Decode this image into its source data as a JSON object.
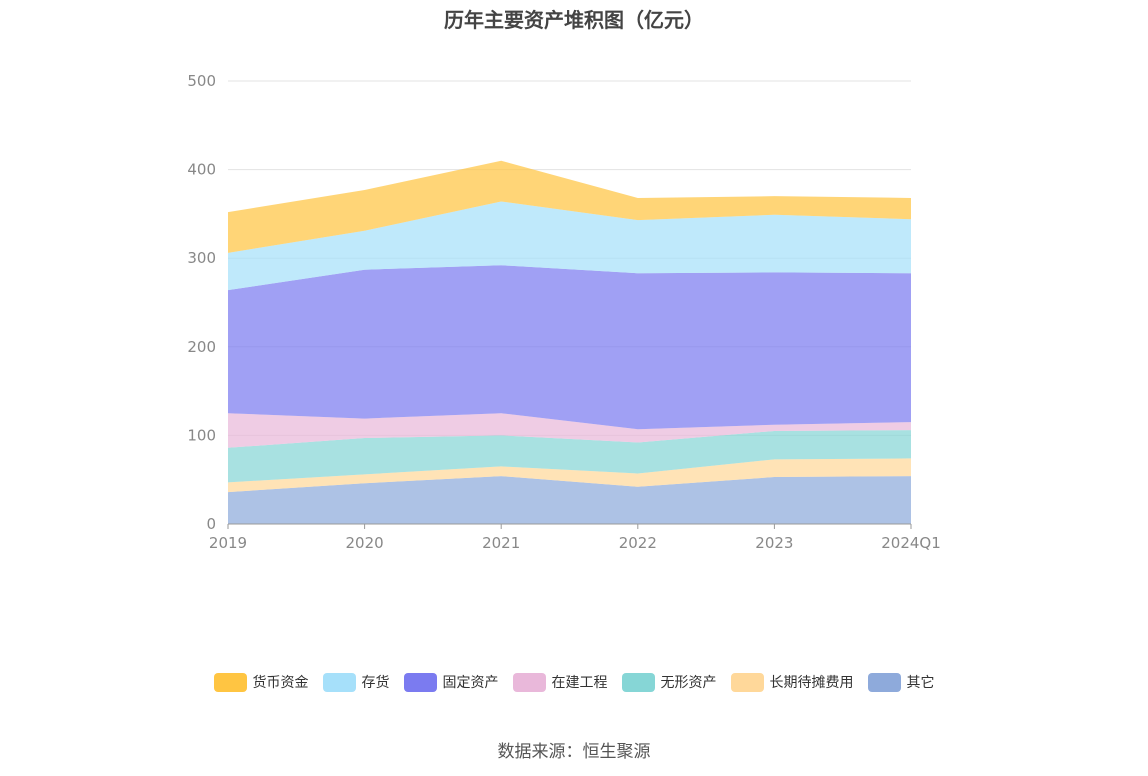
{
  "chart_data": {
    "type": "area",
    "stacked": true,
    "title": "历年主要资产堆积图（亿元）",
    "xlabel": "",
    "ylabel": "",
    "categories": [
      "2019",
      "2020",
      "2021",
      "2022",
      "2023",
      "2024Q1"
    ],
    "ylim": [
      0,
      500
    ],
    "yticks": [
      0,
      100,
      200,
      300,
      400,
      500
    ],
    "grid": true,
    "legend_position": "bottom",
    "series": [
      {
        "name": "其它",
        "color": "#8eaadb",
        "values": [
          36,
          46,
          54,
          42,
          53,
          54
        ]
      },
      {
        "name": "长期待摊费用",
        "color": "#ffd89a",
        "values": [
          11,
          10,
          11,
          15,
          20,
          20
        ]
      },
      {
        "name": "无形资产",
        "color": "#86d6d6",
        "values": [
          39,
          41,
          35,
          35,
          32,
          32
        ]
      },
      {
        "name": "在建工程",
        "color": "#e9b8da",
        "values": [
          39,
          22,
          25,
          15,
          7,
          9
        ]
      },
      {
        "name": "固定资产",
        "color": "#7b7bf0",
        "values": [
          139,
          168,
          167,
          176,
          172,
          168
        ]
      },
      {
        "name": "存货",
        "color": "#a6e0fa",
        "values": [
          42,
          44,
          72,
          60,
          65,
          61
        ]
      },
      {
        "name": "货币资金",
        "color": "#ffc542",
        "values": [
          46,
          46,
          46,
          25,
          21,
          24
        ]
      }
    ]
  },
  "legend_order": [
    "货币资金",
    "存货",
    "固定资产",
    "在建工程",
    "无形资产",
    "长期待摊费用",
    "其它"
  ],
  "source": "数据来源：恒生聚源"
}
